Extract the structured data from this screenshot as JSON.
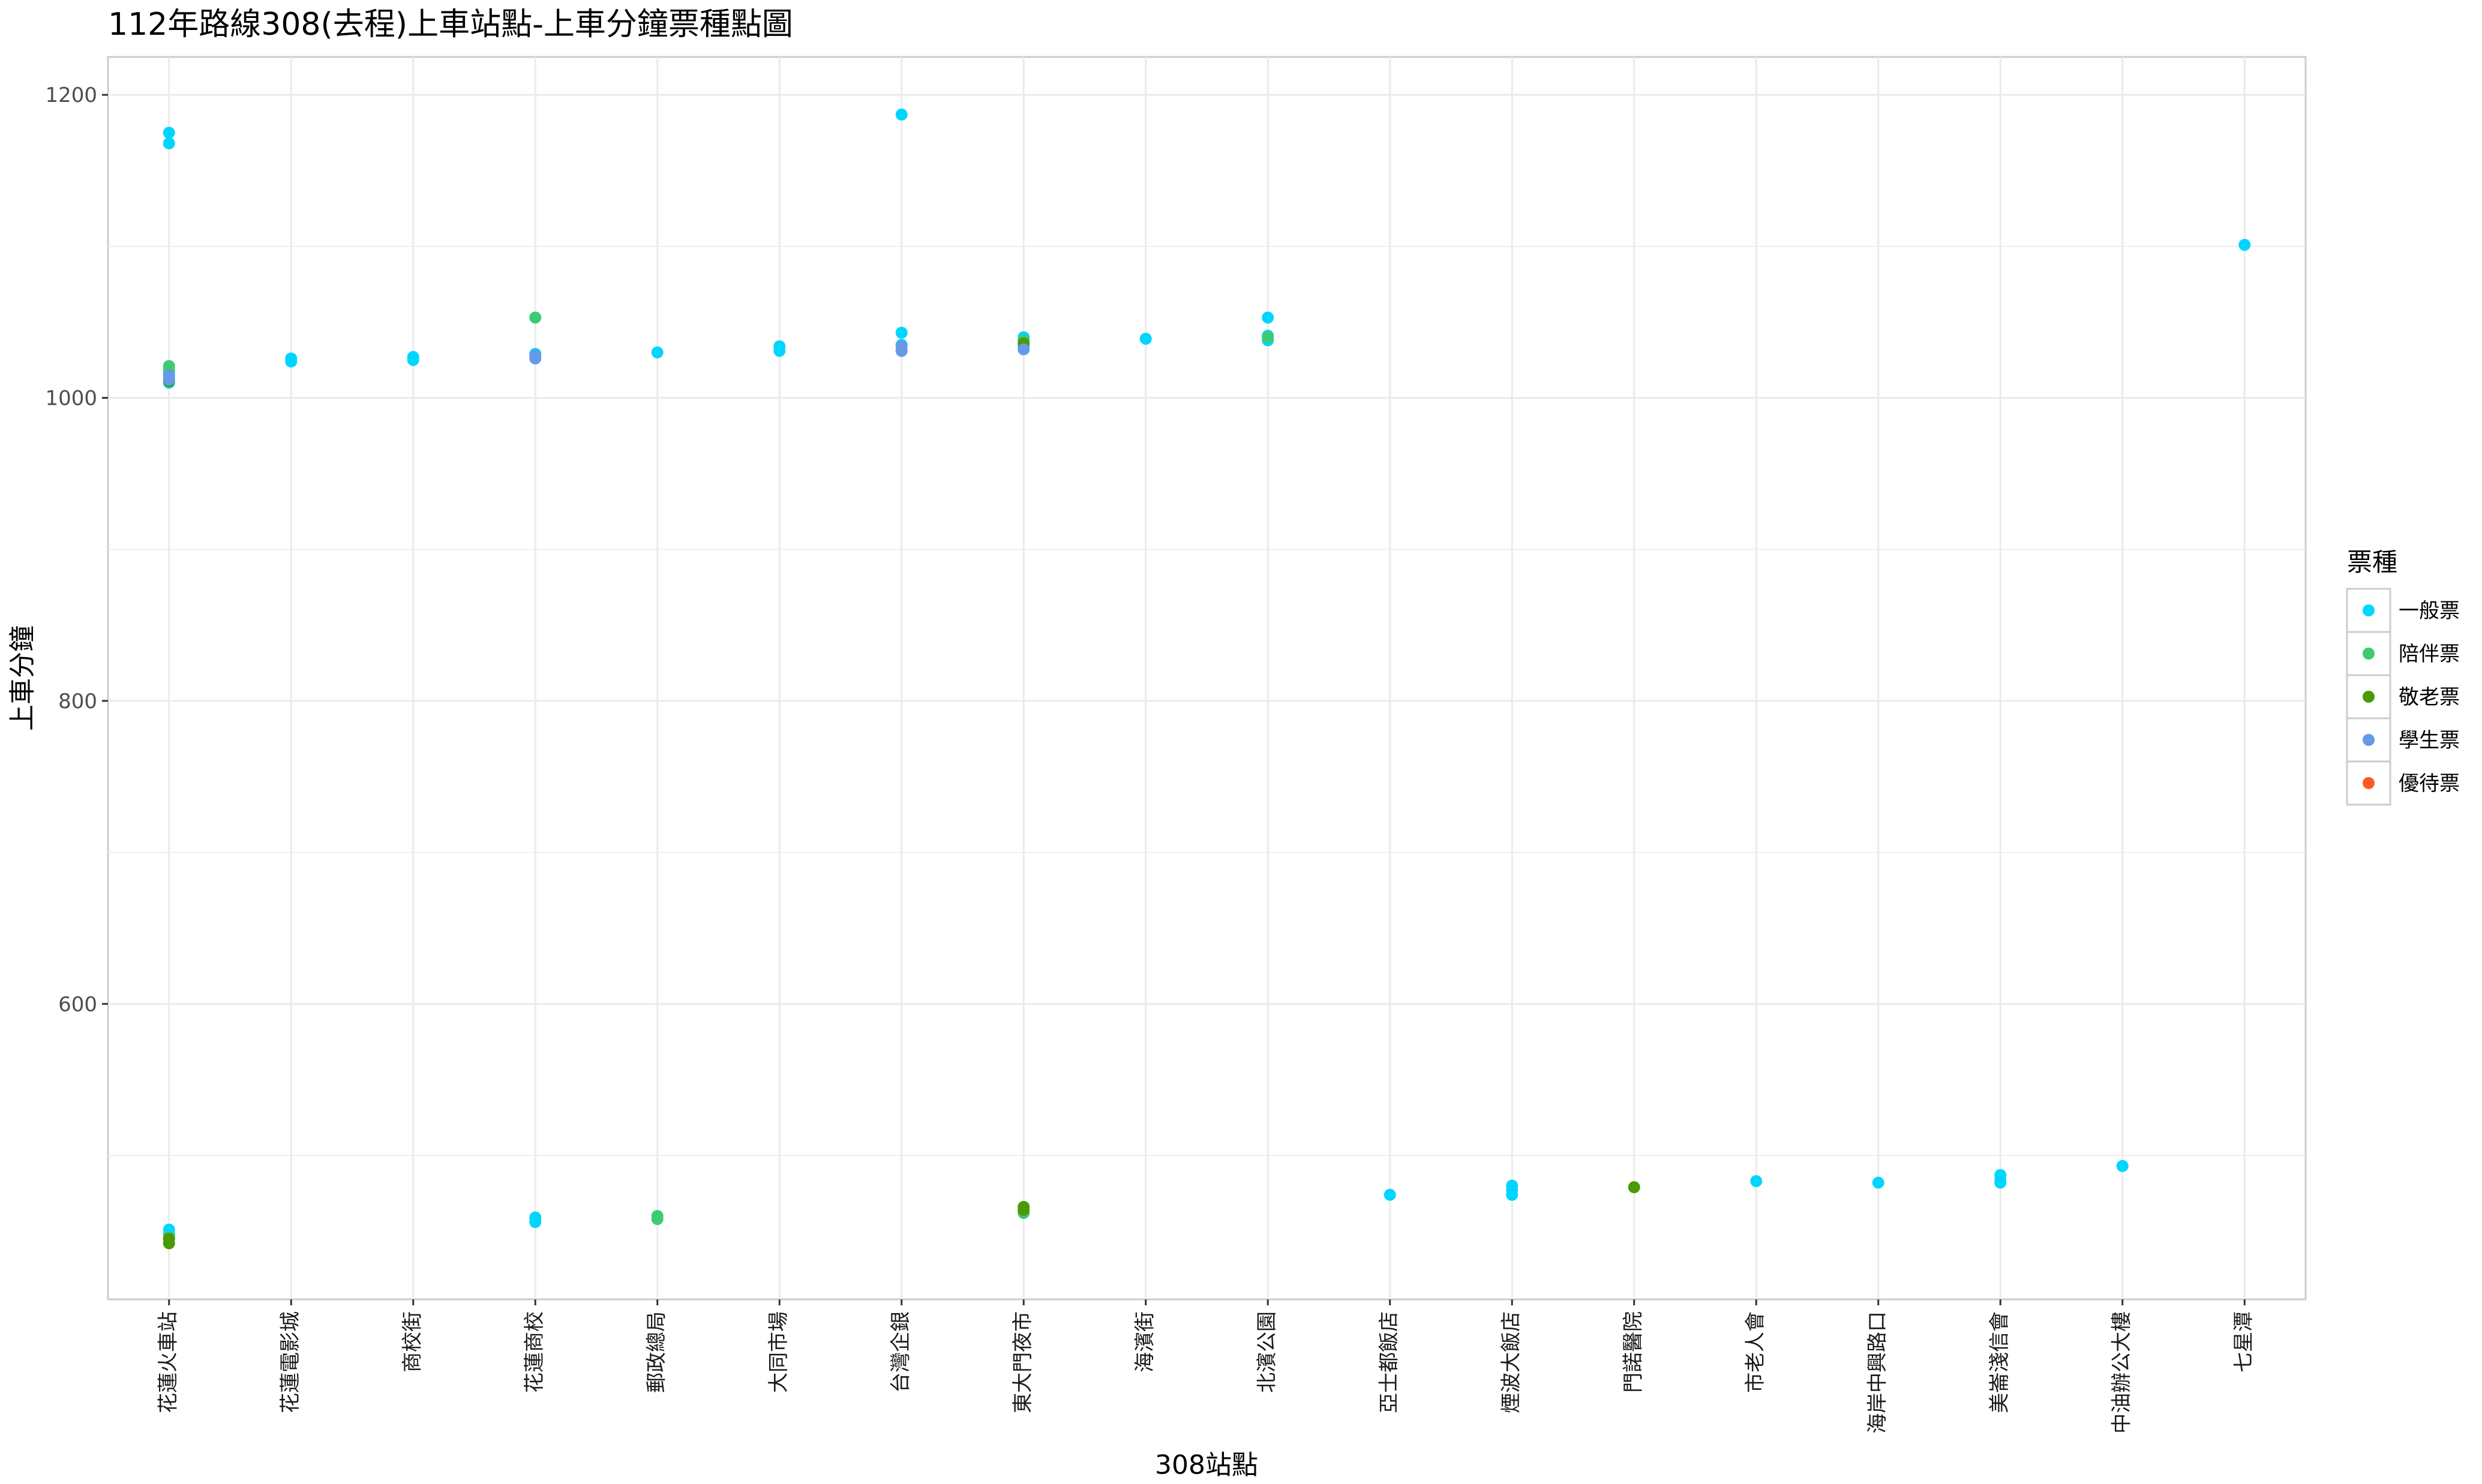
{
  "chart_data": {
    "type": "scatter",
    "title": "112年路線308(去程)上車站點-上車分鐘票種點圖",
    "xlabel": "308站點",
    "ylabel": "上車分鐘",
    "ylim": [
      405,
      1225
    ],
    "yticks": [
      600,
      800,
      1000,
      1200
    ],
    "categories": [
      "花蓮火車站",
      "花蓮電影城",
      "商校街",
      "花蓮商校",
      "郵政總局",
      "大同市場",
      "台灣企銀",
      "東大門夜市",
      "海濱街",
      "北濱公園",
      "亞士都飯店",
      "煙波大飯店",
      "門諾醫院",
      "市老人會",
      "海岸中興路口",
      "美崙淺信會",
      "中油辦公大樓",
      "七星潭"
    ],
    "grid": true,
    "legend": {
      "title": "票種",
      "position": "right",
      "items": [
        "一般票",
        "陪伴票",
        "敬老票",
        "學生票",
        "優待票"
      ]
    },
    "series": [
      {
        "name": "一般票",
        "color": "#00D5FF",
        "points": [
          [
            "花蓮火車站",
            1175
          ],
          [
            "花蓮火車站",
            1168
          ],
          [
            "花蓮火車站",
            1016
          ],
          [
            "花蓮火車站",
            1013
          ],
          [
            "花蓮火車站",
            1010
          ],
          [
            "花蓮火車站",
            451
          ],
          [
            "花蓮火車站",
            448
          ],
          [
            "花蓮電影城",
            1026
          ],
          [
            "花蓮電影城",
            1024
          ],
          [
            "商校街",
            1027
          ],
          [
            "商校街",
            1025
          ],
          [
            "花蓮商校",
            1029
          ],
          [
            "花蓮商校",
            459
          ],
          [
            "花蓮商校",
            456
          ],
          [
            "郵政總局",
            1030
          ],
          [
            "大同市場",
            1034
          ],
          [
            "大同市場",
            1031
          ],
          [
            "台灣企銀",
            1187
          ],
          [
            "台灣企銀",
            1043
          ],
          [
            "台灣企銀",
            1035
          ],
          [
            "東大門夜市",
            1040
          ],
          [
            "東大門夜市",
            1034
          ],
          [
            "海濱街",
            1039
          ],
          [
            "北濱公園",
            1053
          ],
          [
            "北濱公園",
            1041
          ],
          [
            "北濱公園",
            1038
          ],
          [
            "亞士都飯店",
            474
          ],
          [
            "煙波大飯店",
            480
          ],
          [
            "煙波大飯店",
            477
          ],
          [
            "煙波大飯店",
            474
          ],
          [
            "市老人會",
            483
          ],
          [
            "海岸中興路口",
            482
          ],
          [
            "美崙淺信會",
            487
          ],
          [
            "美崙淺信會",
            484
          ],
          [
            "美崙淺信會",
            482
          ],
          [
            "中油辦公大樓",
            493
          ],
          [
            "七星潭",
            1101
          ]
        ]
      },
      {
        "name": "陪伴票",
        "color": "#3DCB72",
        "points": [
          [
            "花蓮火車站",
            1021
          ],
          [
            "花蓮火車站",
            1018
          ],
          [
            "花蓮火車站",
            446
          ],
          [
            "花蓮商校",
            1053
          ],
          [
            "郵政總局",
            460
          ],
          [
            "郵政總局",
            458
          ],
          [
            "東大門夜市",
            1038
          ],
          [
            "東大門夜市",
            462
          ],
          [
            "北濱公園",
            1040
          ]
        ]
      },
      {
        "name": "敬老票",
        "color": "#4A9A05",
        "points": [
          [
            "花蓮火車站",
            1011
          ],
          [
            "花蓮火車站",
            445
          ],
          [
            "花蓮火車站",
            442
          ],
          [
            "東大門夜市",
            1036
          ],
          [
            "東大門夜市",
            466
          ],
          [
            "東大門夜市",
            464
          ],
          [
            "門諾醫院",
            479
          ]
        ]
      },
      {
        "name": "學生票",
        "color": "#6699E8",
        "points": [
          [
            "花蓮火車站",
            1015
          ],
          [
            "花蓮火車站",
            1012
          ],
          [
            "花蓮商校",
            1028
          ],
          [
            "花蓮商校",
            1026
          ],
          [
            "台灣企銀",
            1034
          ],
          [
            "台灣企銀",
            1031
          ],
          [
            "東大門夜市",
            1032
          ]
        ]
      },
      {
        "name": "優待票",
        "color": "#FF5A1F",
        "points": []
      }
    ]
  }
}
